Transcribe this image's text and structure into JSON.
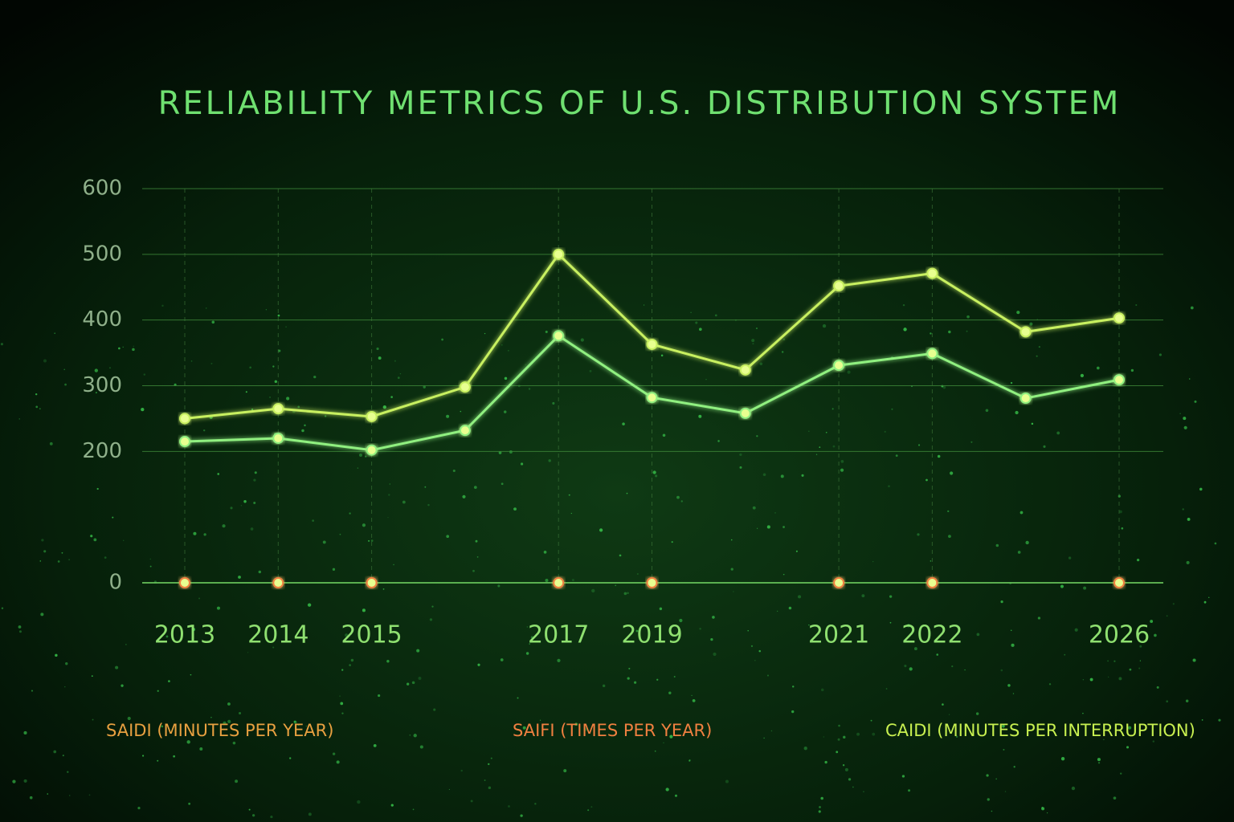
{
  "chart_data": {
    "type": "line",
    "title": "RELIABILITY METRICS OF U.S. DISTRIBUTION SYSTEM",
    "categories": [
      "2013",
      "2014",
      "2015",
      null,
      "2017",
      "2019",
      null,
      "2021",
      "2022",
      null,
      "2026"
    ],
    "series": [
      {
        "name": "SAIDI (MINUTES PER YEAR)",
        "color": "#c8f060",
        "label_color": "#e8a040",
        "values": [
          250,
          265,
          253,
          298,
          500,
          363,
          324,
          452,
          471,
          382,
          403
        ]
      },
      {
        "name": "SAIFI (TIMES PER YEAR)",
        "color": "#f08040",
        "label_color": "#f08040",
        "values": [
          0,
          0,
          0,
          null,
          0,
          0,
          null,
          0,
          0,
          null,
          0
        ]
      },
      {
        "name": "CAIDI (MINUTES PER INTERRUPTION)",
        "color": "#90f080",
        "label_color": "#c8f050",
        "values": [
          215,
          220,
          202,
          232,
          376,
          282,
          258,
          331,
          349,
          281,
          309
        ]
      }
    ],
    "ylim": [
      0,
      600
    ],
    "yticks": [
      0,
      200,
      300,
      400,
      500,
      600
    ],
    "grid": true
  }
}
